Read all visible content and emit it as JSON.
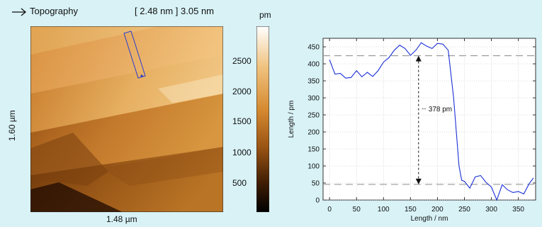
{
  "header": {
    "title": "Topography",
    "scale_range": "[ 2.48 nm ] 3.05 nm",
    "colorbar_unit": "pm"
  },
  "image": {
    "width_label": "1.48 µm",
    "height_label": "1.60 µm"
  },
  "colorbar": {
    "ticks": [
      "2500",
      "2000",
      "1500",
      "1000",
      "500"
    ]
  },
  "chart_data": {
    "type": "line",
    "xlabel": "Length / nm",
    "ylabel": "Length / pm",
    "xlim": [
      -12,
      382
    ],
    "ylim": [
      0,
      475
    ],
    "xticks": [
      0,
      50,
      100,
      150,
      200,
      250,
      300,
      350
    ],
    "yticks": [
      0,
      50,
      100,
      150,
      200,
      250,
      300,
      350,
      400,
      450
    ],
    "grid": true,
    "annotation": "378 pm",
    "reference_lines": [
      424,
      46
    ],
    "marker_x": 165,
    "x": [
      0,
      10,
      20,
      30,
      40,
      50,
      60,
      70,
      80,
      90,
      100,
      110,
      120,
      130,
      140,
      150,
      160,
      170,
      180,
      190,
      200,
      210,
      220,
      230,
      240,
      245,
      250,
      260,
      270,
      280,
      290,
      300,
      310,
      320,
      330,
      340,
      350,
      360,
      370,
      378
    ],
    "y": [
      412,
      370,
      372,
      358,
      360,
      380,
      362,
      375,
      363,
      380,
      405,
      418,
      440,
      455,
      445,
      425,
      440,
      462,
      452,
      445,
      460,
      458,
      440,
      300,
      100,
      58,
      55,
      35,
      68,
      72,
      52,
      38,
      0,
      45,
      30,
      22,
      25,
      18,
      48,
      65
    ]
  }
}
